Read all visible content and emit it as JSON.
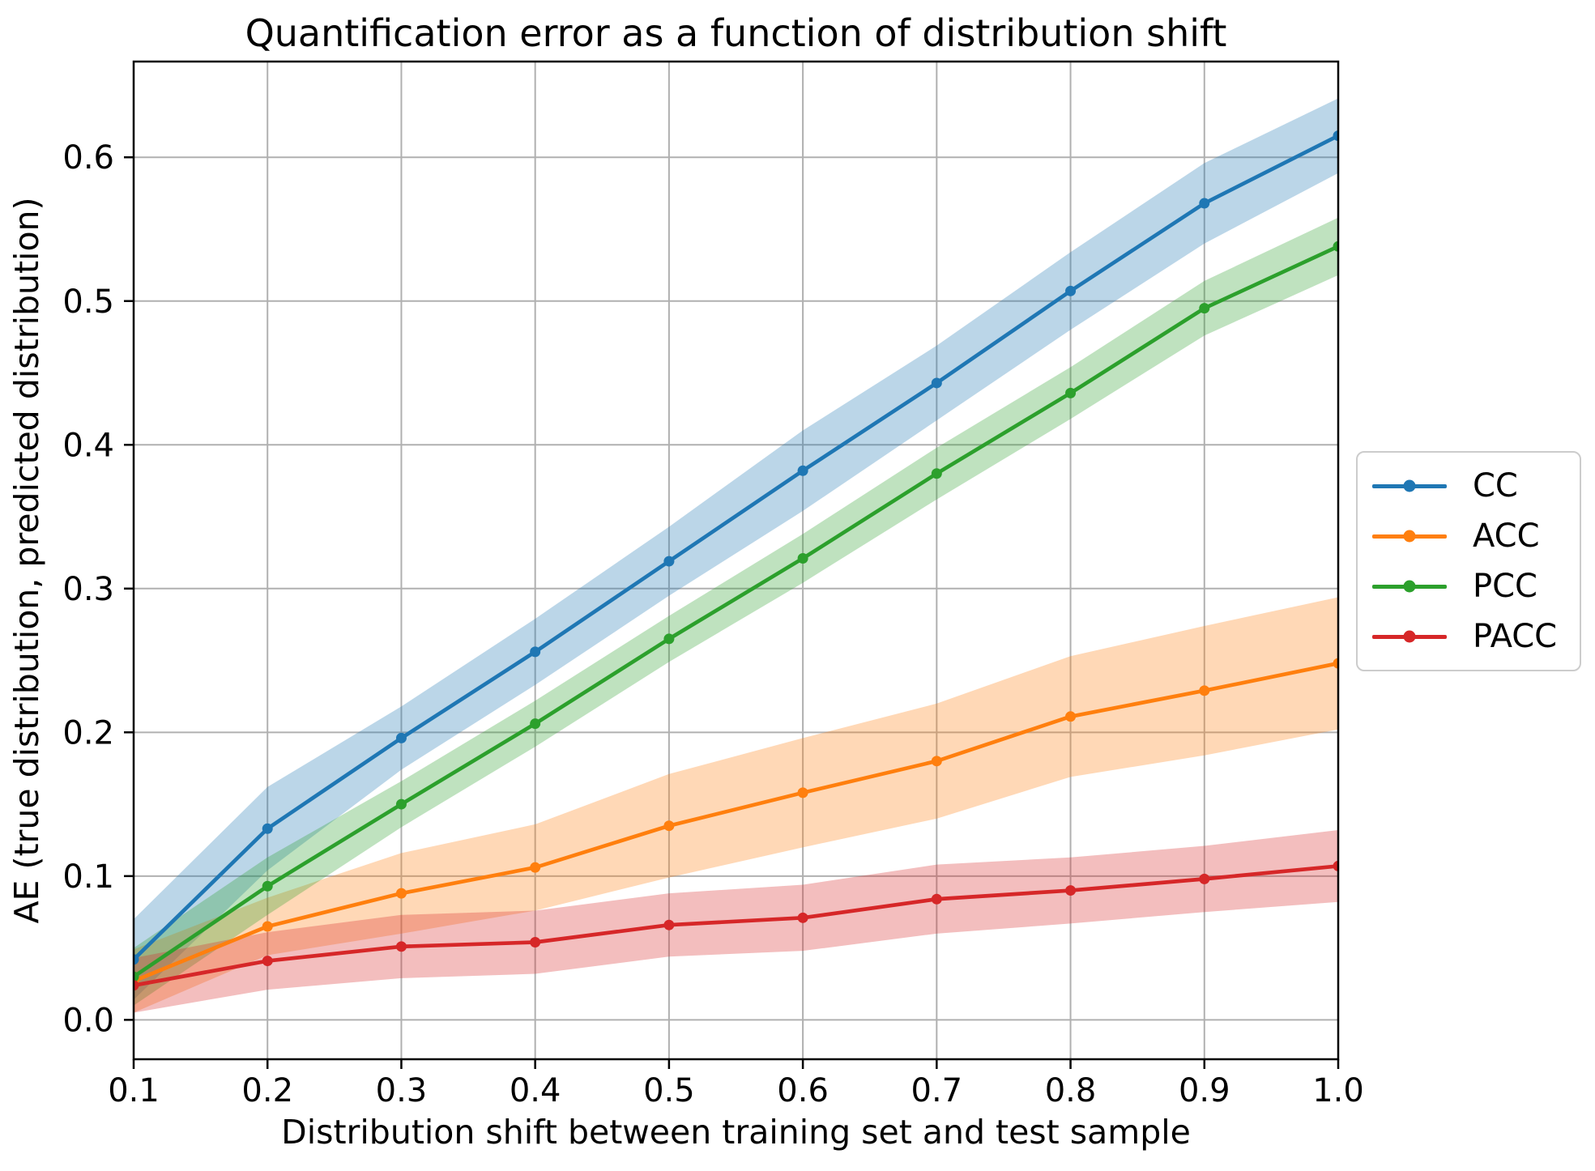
{
  "title": "Quantification error as a function of distribution shift",
  "chart_data": {
    "type": "line",
    "title": "Quantification error as a function of distribution shift",
    "xlabel": "Distribution shift between training set and test sample",
    "ylabel": "AE (true distribution, predicted distribution)",
    "x": [
      0.1,
      0.2,
      0.3,
      0.4,
      0.5,
      0.6,
      0.7,
      0.8,
      0.9,
      1.0
    ],
    "x_tick_labels": [
      "0.1",
      "0.2",
      "0.3",
      "0.4",
      "0.5",
      "0.6",
      "0.7",
      "0.8",
      "0.9",
      "1.0"
    ],
    "y_tick_values": [
      0.0,
      0.1,
      0.2,
      0.3,
      0.4,
      0.5,
      0.6
    ],
    "y_tick_labels": [
      "0.0",
      "0.1",
      "0.2",
      "0.3",
      "0.4",
      "0.5",
      "0.6"
    ],
    "xlim": [
      0.1,
      1.0
    ],
    "ylim": [
      -0.0274,
      0.6666
    ],
    "grid": true,
    "legend_position": "center-right-outside",
    "band_alpha": 0.3,
    "series": [
      {
        "name": "CC",
        "color": "#1f77b4",
        "values": [
          0.042,
          0.133,
          0.196,
          0.256,
          0.319,
          0.382,
          0.443,
          0.507,
          0.568,
          0.615
        ],
        "band_halfwidth": [
          0.028,
          0.029,
          0.022,
          0.023,
          0.024,
          0.028,
          0.026,
          0.027,
          0.028,
          0.026
        ]
      },
      {
        "name": "ACC",
        "color": "#ff7f0e",
        "values": [
          0.027,
          0.065,
          0.088,
          0.106,
          0.135,
          0.158,
          0.18,
          0.211,
          0.229,
          0.248
        ],
        "band_halfwidth": [
          0.022,
          0.02,
          0.028,
          0.03,
          0.036,
          0.038,
          0.04,
          0.042,
          0.045,
          0.046
        ]
      },
      {
        "name": "PCC",
        "color": "#2ca02c",
        "values": [
          0.03,
          0.093,
          0.15,
          0.206,
          0.265,
          0.321,
          0.38,
          0.436,
          0.495,
          0.538
        ],
        "band_halfwidth": [
          0.02,
          0.02,
          0.016,
          0.016,
          0.016,
          0.017,
          0.018,
          0.018,
          0.019,
          0.02
        ]
      },
      {
        "name": "PACC",
        "color": "#d62728",
        "values": [
          0.024,
          0.041,
          0.051,
          0.054,
          0.066,
          0.071,
          0.084,
          0.09,
          0.098,
          0.107
        ],
        "band_halfwidth": [
          0.019,
          0.02,
          0.022,
          0.022,
          0.022,
          0.023,
          0.024,
          0.023,
          0.023,
          0.025
        ]
      }
    ],
    "colors": {
      "grid": "#b0b0b0",
      "spine": "#000000",
      "background": "#ffffff",
      "tick_label": "#000000"
    }
  },
  "legend": {
    "items": [
      {
        "label": "CC",
        "color": "#1f77b4"
      },
      {
        "label": "ACC",
        "color": "#ff7f0e"
      },
      {
        "label": "PCC",
        "color": "#2ca02c"
      },
      {
        "label": "PACC",
        "color": "#d62728"
      }
    ]
  }
}
